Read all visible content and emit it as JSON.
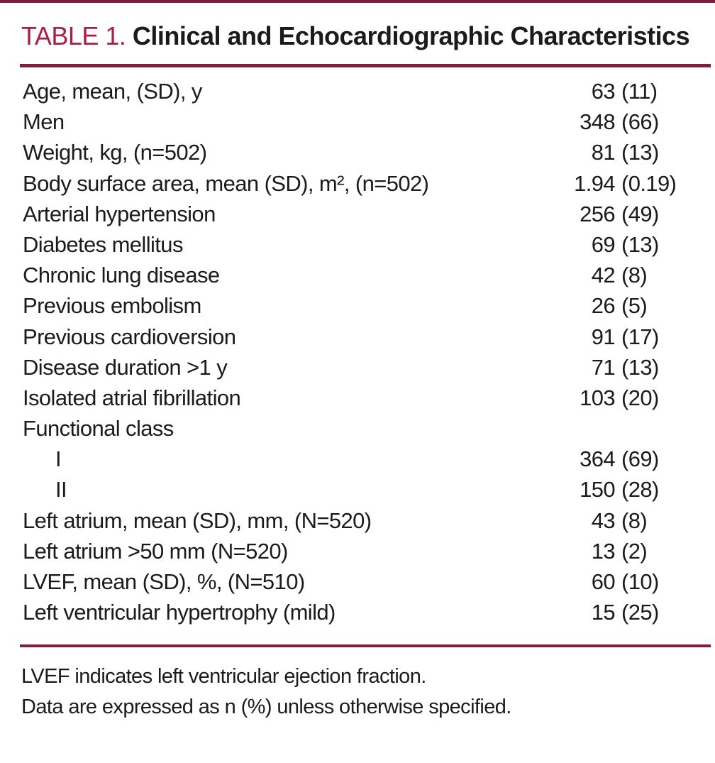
{
  "colors": {
    "accent_crimson": "#ab1e44",
    "rule_maroon": "#7d2040",
    "text": "#1b1b1b",
    "background": "#ffffff"
  },
  "table": {
    "label": "TABLE 1.",
    "title": "Clinical and Echocardiographic Characteristics",
    "rows": [
      {
        "label": "Age, mean, (SD), y",
        "n": "63",
        "pct": "(11)"
      },
      {
        "label": "Men",
        "n": "348",
        "pct": "(66)"
      },
      {
        "label": "Weight, kg, (n=502)",
        "n": "81",
        "pct": "(13)"
      },
      {
        "label": "Body surface area, mean (SD), m², (n=502)",
        "n": "1.94",
        "pct": "(0.19)"
      },
      {
        "label": "Arterial hypertension",
        "n": "256",
        "pct": "(49)"
      },
      {
        "label": "Diabetes mellitus",
        "n": "69",
        "pct": "(13)"
      },
      {
        "label": "Chronic lung disease",
        "n": "42",
        "pct": "(8)"
      },
      {
        "label": "Previous embolism",
        "n": "26",
        "pct": "(5)"
      },
      {
        "label": "Previous cardioversion",
        "n": "91",
        "pct": "(17)"
      },
      {
        "label": "Disease duration >1 y",
        "n": "71",
        "pct": "(13)"
      },
      {
        "label": "Isolated atrial fibrillation",
        "n": "103",
        "pct": "(20)"
      },
      {
        "label": "Functional class",
        "n": "",
        "pct": ""
      },
      {
        "label": "I",
        "n": "364",
        "pct": "(69)"
      },
      {
        "label": "II",
        "n": "150",
        "pct": "(28)"
      },
      {
        "label": "Left atrium, mean (SD), mm, (N=520)",
        "n": "43",
        "pct": "(8)"
      },
      {
        "label": "Left atrium >50 mm (N=520)",
        "n": "13",
        "pct": "(2)"
      },
      {
        "label": "LVEF, mean (SD), %, (N=510)",
        "n": "60",
        "pct": "(10)"
      },
      {
        "label": "Left ventricular hypertrophy (mild)",
        "n": "15",
        "pct": "(25)"
      }
    ],
    "footnotes": [
      "LVEF indicates left ventricular ejection fraction.",
      "Data are expressed as n (%) unless otherwise specified."
    ]
  }
}
